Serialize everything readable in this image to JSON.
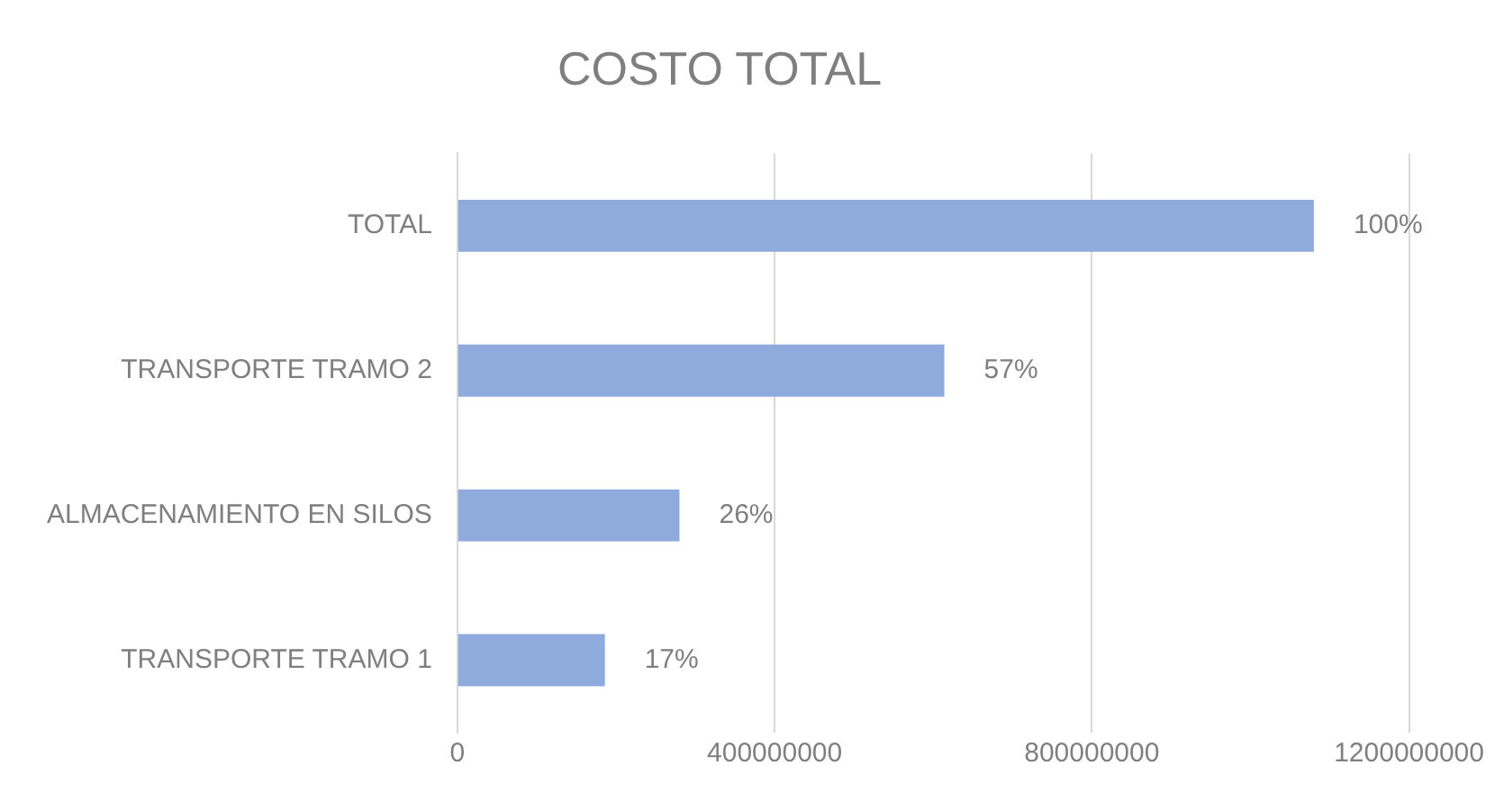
{
  "chart_data": {
    "type": "bar",
    "title": "COSTO TOTAL",
    "orientation": "horizontal",
    "categories": [
      "TOTAL",
      "TRANSPORTE TRAMO 2",
      "ALMACENAMIENTO EN SILOS",
      "TRANSPORTE TRAMO 1"
    ],
    "series": [
      {
        "color": "#8faadc",
        "values": [
          1080000000,
          614000000,
          280000000,
          186000000
        ]
      }
    ],
    "annotations": [
      {
        "text": "100%",
        "x": 1080000000,
        "y": "TOTAL"
      },
      {
        "text": "57%",
        "x": 614000000,
        "y": "TRANSPORTE TRAMO 2"
      },
      {
        "text": "26%",
        "x": 280000000,
        "y": "ALMACENAMIENTO EN SILOS"
      },
      {
        "text": "17%",
        "x": 186000000,
        "y": "TRANSPORTE TRAMO 1"
      }
    ],
    "xlim": [
      0,
      1200000000
    ],
    "xticks": [
      0,
      400000000,
      800000000,
      1200000000
    ],
    "grid": "x",
    "legend": false
  }
}
